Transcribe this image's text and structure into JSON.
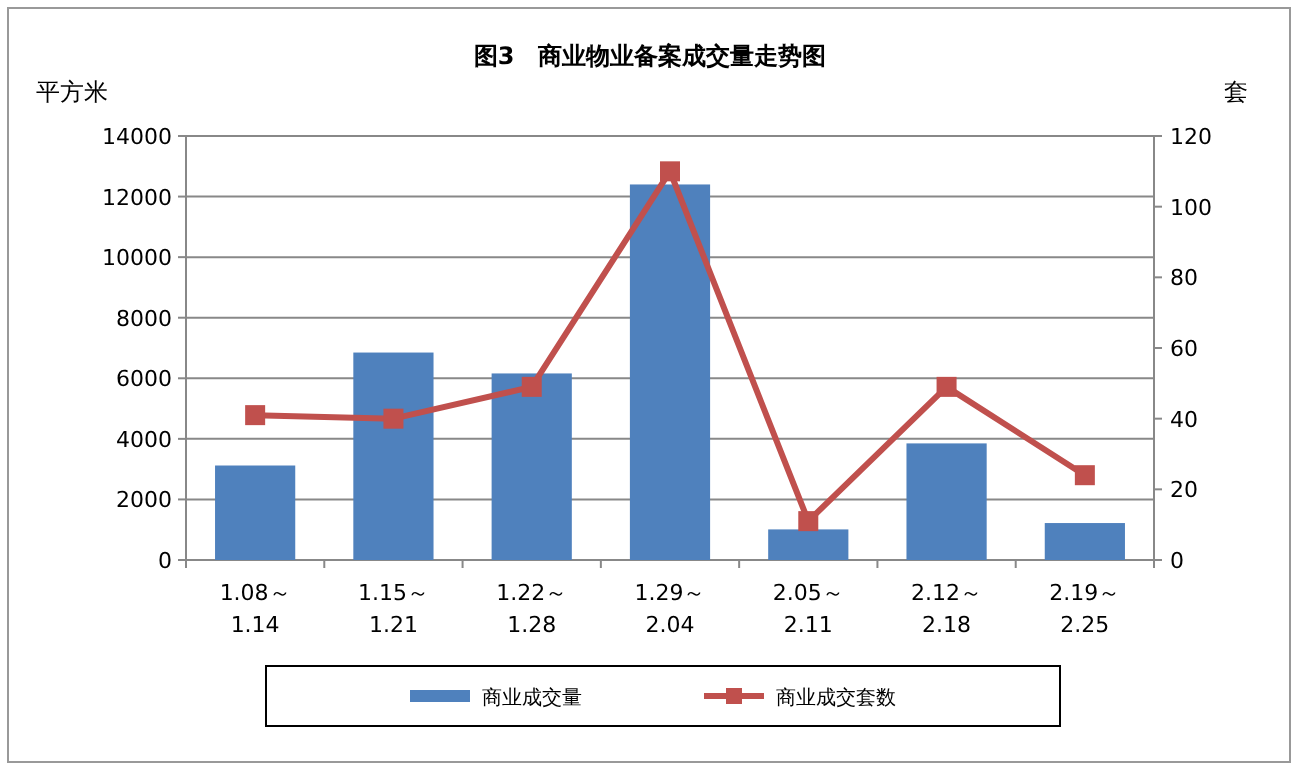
{
  "chart_data": {
    "type": "bar",
    "title": "图3　商业物业备案成交量走势图",
    "ylabel": "平方米",
    "y2label": "套",
    "categories": [
      "1.08～\n1.14",
      "1.15～\n1.21",
      "1.22～\n1.28",
      "1.29～\n2.04",
      "2.05～\n2.11",
      "2.12～\n2.18",
      "2.19～\n2.25"
    ],
    "series": [
      {
        "name": "商业成交量",
        "color": "#4f81bd",
        "values": [
          3120,
          6850,
          6160,
          12400,
          1010,
          3850,
          1220
        ]
      },
      {
        "name": "商业成交套数",
        "type": "line",
        "axis": "y2",
        "color": "#c0504d",
        "marker": "square",
        "values": [
          41,
          40,
          49,
          110,
          11,
          49,
          24
        ]
      }
    ],
    "ylim": [
      0,
      14000
    ],
    "yticks": [
      0,
      2000,
      4000,
      6000,
      8000,
      10000,
      12000,
      14000
    ],
    "y2lim": [
      0,
      120
    ],
    "y2ticks": [
      0,
      20,
      40,
      60,
      80,
      100,
      120
    ],
    "grid": "y",
    "legend": "bottom"
  }
}
